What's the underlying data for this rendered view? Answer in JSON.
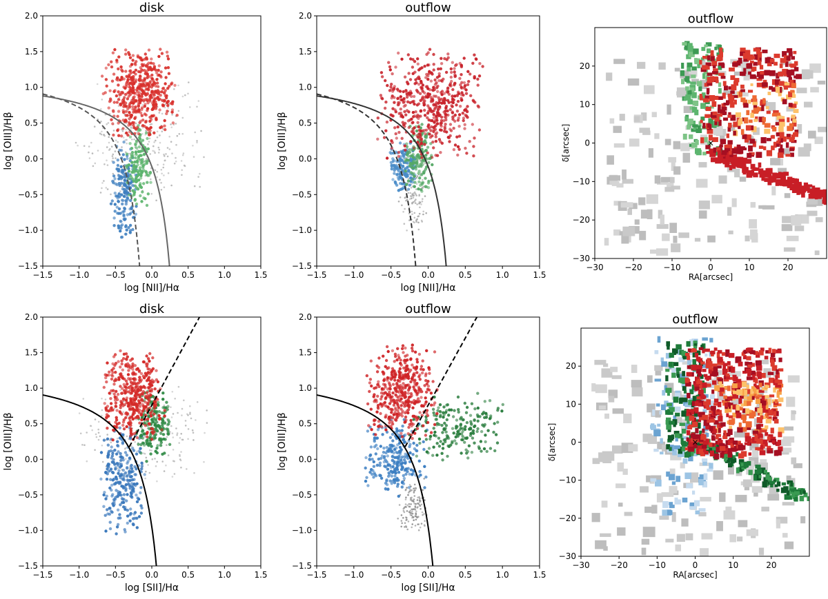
{
  "chart_data": [
    {
      "type": "scatter",
      "title": "disk",
      "xlabel": "log [NII]/Hα",
      "ylabel": "log [OIII]/Hβ",
      "xlim": [
        -1.5,
        1.5
      ],
      "ylim": [
        -1.5,
        2.0
      ],
      "xticks": [
        "−1.5",
        "−1.0",
        "−0.5",
        "0.0",
        "0.5",
        "1.0",
        "1.5"
      ],
      "yticks": [
        "−1.5",
        "−1.0",
        "−0.5",
        "0.0",
        "0.5",
        "1.0",
        "1.5",
        "2.0"
      ],
      "curves": [
        {
          "style": "dashed",
          "color": "#555555",
          "kind": "kauffmann"
        },
        {
          "style": "solid",
          "color": "#666666",
          "kind": "kewley"
        }
      ],
      "clouds": [
        {
          "class": "gray",
          "color": "#b8b8b8",
          "xrange": [
            -1.0,
            0.7
          ],
          "yrange": [
            -0.6,
            1.1
          ],
          "n": 280
        },
        {
          "class": "blue",
          "color": "#3f7fbf",
          "xrange": [
            -0.55,
            -0.2
          ],
          "yrange": [
            -1.1,
            0.2
          ],
          "n": 170
        },
        {
          "class": "green",
          "color": "#5cb46d",
          "xrange": [
            -0.35,
            0.0
          ],
          "yrange": [
            -0.65,
            0.45
          ],
          "n": 160
        },
        {
          "class": "red",
          "color": "#d8302c",
          "xrange": [
            -0.65,
            0.35
          ],
          "yrange": [
            0.3,
            1.5
          ],
          "n": 480
        }
      ]
    },
    {
      "type": "scatter",
      "title": "outflow",
      "xlabel": "log [NII]/Hα",
      "ylabel": "log [OIII]/Hβ",
      "xlim": [
        -1.5,
        1.5
      ],
      "ylim": [
        -1.5,
        2.0
      ],
      "xticks": [
        "−1.5",
        "−1.0",
        "−0.5",
        "0.0",
        "0.5",
        "1.0",
        "1.5"
      ],
      "yticks": [
        "−1.5",
        "−1.0",
        "−0.5",
        "0.0",
        "0.5",
        "1.0",
        "1.5",
        "2.0"
      ],
      "curves": [
        {
          "style": "dashed",
          "color": "#333333",
          "kind": "kauffmann"
        },
        {
          "style": "solid",
          "color": "#333333",
          "kind": "kewley"
        }
      ],
      "clouds": [
        {
          "class": "gray",
          "color": "#a9a9a9",
          "xrange": [
            -0.4,
            0.0
          ],
          "yrange": [
            -1.0,
            0.0
          ],
          "n": 120
        },
        {
          "class": "blue",
          "color": "#4a8cc8",
          "xrange": [
            -0.5,
            -0.15
          ],
          "yrange": [
            -0.45,
            0.25
          ],
          "n": 150
        },
        {
          "class": "green",
          "color": "#55a866",
          "xrange": [
            -0.3,
            0.05
          ],
          "yrange": [
            -0.45,
            0.5
          ],
          "n": 150
        },
        {
          "class": "red",
          "color": "#c8222a",
          "xrange": [
            -0.65,
            0.7
          ],
          "yrange": [
            0.0,
            1.5
          ],
          "n": 520
        }
      ]
    },
    {
      "type": "heatmap",
      "title": "outflow",
      "xlabel": "RA[arcsec]",
      "ylabel": "δ[arcsec]",
      "xlim": [
        -30,
        30
      ],
      "ylim": [
        -30,
        30
      ],
      "xticks": [
        "−30",
        "−20",
        "−10",
        "0",
        "10",
        "20"
      ],
      "yticks": [
        "−30",
        "−20",
        "−10",
        "0",
        "10",
        "20"
      ],
      "marker": {
        "ra": 0,
        "dec": 0,
        "symbol": "×"
      }
    },
    {
      "type": "scatter",
      "title": "disk",
      "xlabel": "log [SII]/Hα",
      "ylabel": "log [OIII]/Hβ",
      "xlim": [
        -1.5,
        1.5
      ],
      "ylim": [
        -1.5,
        2.0
      ],
      "xticks": [
        "−1.5",
        "−1.0",
        "−0.5",
        "0.0",
        "0.5",
        "1.0",
        "1.5"
      ],
      "yticks": [
        "−1.5",
        "−1.0",
        "−0.5",
        "0.0",
        "0.5",
        "1.0",
        "1.5",
        "2.0"
      ],
      "curves": [
        {
          "style": "solid",
          "color": "#000000",
          "kind": "kewley-sii"
        },
        {
          "style": "dashed",
          "color": "#000000",
          "kind": "seyfert-liner"
        }
      ],
      "clouds": [
        {
          "class": "gray",
          "color": "#b8b8b8",
          "xrange": [
            -0.95,
            0.8
          ],
          "yrange": [
            -0.3,
            1.0
          ],
          "n": 220
        },
        {
          "class": "blue",
          "color": "#3a78bc",
          "xrange": [
            -0.7,
            -0.1
          ],
          "yrange": [
            -1.0,
            0.45
          ],
          "n": 260
        },
        {
          "class": "green",
          "color": "#2f8a45",
          "xrange": [
            -0.2,
            0.25
          ],
          "yrange": [
            0.0,
            0.95
          ],
          "n": 190
        },
        {
          "class": "red",
          "color": "#d42a28",
          "xrange": [
            -0.65,
            0.15
          ],
          "yrange": [
            0.3,
            1.5
          ],
          "n": 420
        }
      ]
    },
    {
      "type": "scatter",
      "title": "outflow",
      "xlabel": "log [SII]/Hα",
      "ylabel": "log [OIII]/Hβ",
      "xlim": [
        -1.5,
        1.5
      ],
      "ylim": [
        -1.5,
        2.0
      ],
      "xticks": [
        "−1.5",
        "−1.0",
        "−0.5",
        "0.0",
        "0.5",
        "1.0",
        "1.5"
      ],
      "yticks": [
        "−1.5",
        "−1.0",
        "−0.5",
        "0.0",
        "0.5",
        "1.0",
        "1.5",
        "2.0"
      ],
      "curves": [
        {
          "style": "solid",
          "color": "#000000",
          "kind": "kewley-sii"
        },
        {
          "style": "dashed",
          "color": "#000000",
          "kind": "seyfert-liner"
        }
      ],
      "clouds": [
        {
          "class": "gray",
          "color": "#8f8f8f",
          "xrange": [
            -0.4,
            0.0
          ],
          "yrange": [
            -1.05,
            -0.3
          ],
          "n": 130
        },
        {
          "class": "blue",
          "color": "#3d7fc2",
          "xrange": [
            -0.85,
            -0.05
          ],
          "yrange": [
            -0.5,
            0.55
          ],
          "n": 260
        },
        {
          "class": "green",
          "color": "#2a7d3e",
          "xrange": [
            -0.2,
            1.0
          ],
          "yrange": [
            0.0,
            0.9
          ],
          "n": 200
        },
        {
          "class": "red",
          "color": "#cf2427",
          "xrange": [
            -0.8,
            0.1
          ],
          "yrange": [
            0.3,
            1.6
          ],
          "n": 440
        }
      ]
    },
    {
      "type": "heatmap",
      "title": "outflow",
      "xlabel": "RA[arcsec]",
      "ylabel": "δ[arcsec]",
      "xlim": [
        -30,
        30
      ],
      "ylim": [
        -30,
        30
      ],
      "xticks": [
        "−30",
        "−20",
        "−10",
        "0",
        "10",
        "20"
      ],
      "yticks": [
        "−30",
        "−20",
        "−10",
        "0",
        "10",
        "20"
      ],
      "marker": {
        "ra": 0,
        "dec": 0,
        "symbol": "×"
      }
    }
  ]
}
